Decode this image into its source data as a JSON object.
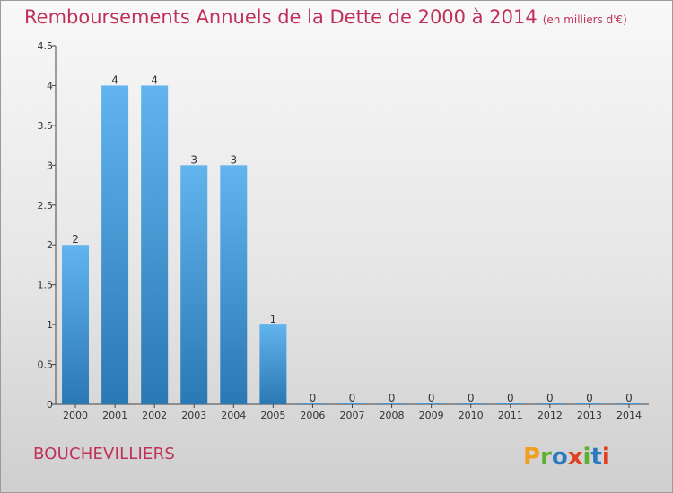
{
  "title": "Remboursements Annuels de la Dette de 2000 à 2014",
  "unit": "(en milliers d'€)",
  "commune": "BOUCHEVILLIERS",
  "logo_text": "Proxiti",
  "colors": {
    "title": "#c0305a",
    "bar_top": "#62b4ee",
    "bar_bottom": "#2a78b4",
    "logo": [
      "#f0a020",
      "#5cb030",
      "#2a7ac0",
      "#e04020",
      "#5cb030",
      "#2a7ac0",
      "#e04020"
    ]
  },
  "chart_data": {
    "type": "bar",
    "categories": [
      "2000",
      "2001",
      "2002",
      "2003",
      "2004",
      "2005",
      "2006",
      "2007",
      "2008",
      "2009",
      "2010",
      "2011",
      "2012",
      "2013",
      "2014"
    ],
    "values": [
      2,
      4,
      4,
      3,
      3,
      1,
      0,
      0,
      0,
      0,
      0,
      0,
      0,
      0,
      0
    ],
    "data_labels": [
      "2",
      "4",
      "4",
      "3",
      "3",
      "1",
      "0",
      "0",
      "0",
      "0",
      "0",
      "0",
      "0",
      "0",
      "0"
    ],
    "ylim": [
      0,
      4.5
    ],
    "yticks": [
      0,
      0.5,
      1,
      1.5,
      2,
      2.5,
      3,
      3.5,
      4,
      4.5
    ],
    "ytick_labels": [
      "0",
      "0.5",
      "1",
      "1.5",
      "2",
      "2.5",
      "3",
      "3.5",
      "4",
      "4.5"
    ],
    "grid": false,
    "xlabel": "",
    "ylabel": ""
  }
}
